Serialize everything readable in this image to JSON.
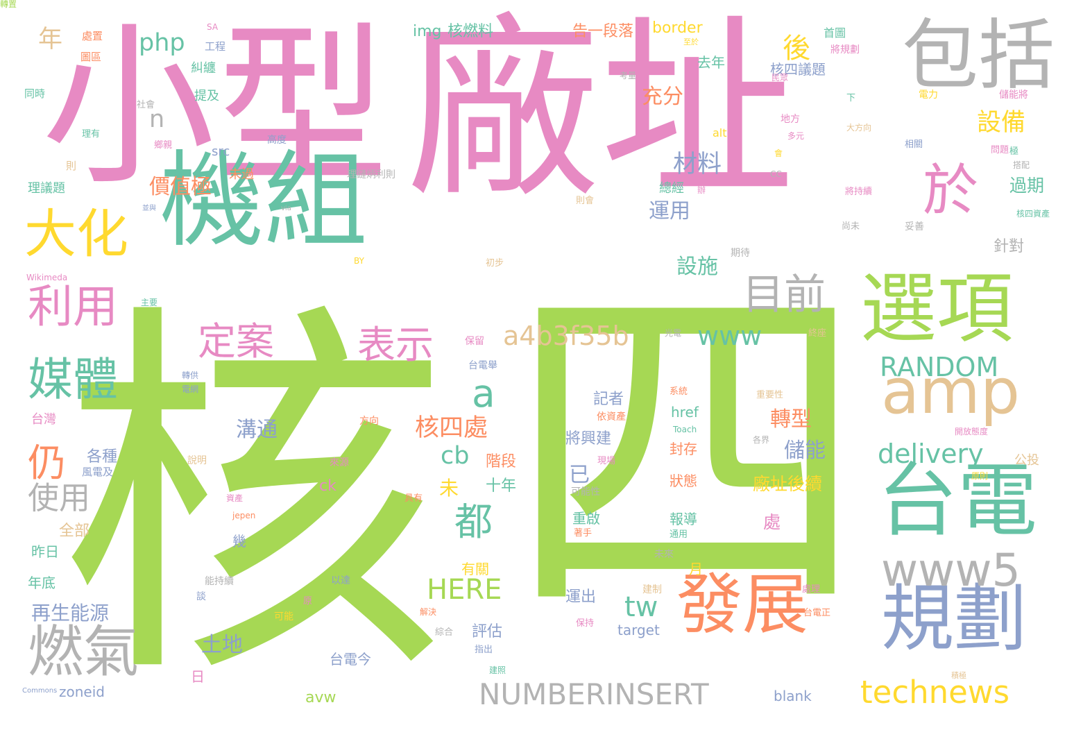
{
  "palette": {
    "pink": "#e78ac3",
    "green": "#a6d854",
    "teal": "#66c2a5",
    "orange": "#fc8d62",
    "blue": "#8da0cb",
    "yellow": "#ffd92f",
    "tan": "#e5c494",
    "gray": "#b3b3b3"
  },
  "words": [
    {
      "text": "核",
      "color": "green"
    },
    {
      "text": "四",
      "color": "green"
    },
    {
      "text": "廠址",
      "color": "pink"
    },
    {
      "text": "小型",
      "color": "pink"
    },
    {
      "text": "機組",
      "color": "teal"
    },
    {
      "text": "包括",
      "color": "gray"
    },
    {
      "text": "選項",
      "color": "green"
    },
    {
      "text": "台電",
      "color": "teal"
    },
    {
      "text": "規劃",
      "color": "blue"
    },
    {
      "text": "amp",
      "color": "tan"
    },
    {
      "text": "於",
      "color": "pink"
    },
    {
      "text": "大化",
      "color": "yellow"
    },
    {
      "text": "利用",
      "color": "pink"
    },
    {
      "text": "媒體",
      "color": "teal"
    },
    {
      "text": "燃氣",
      "color": "gray"
    },
    {
      "text": "發展",
      "color": "orange"
    },
    {
      "text": "www5",
      "color": "gray"
    },
    {
      "text": "目前",
      "color": "gray"
    },
    {
      "text": "表示",
      "color": "pink"
    },
    {
      "text": "定案",
      "color": "pink"
    },
    {
      "text": "都",
      "color": "teal"
    },
    {
      "text": "仍",
      "color": "orange"
    },
    {
      "text": "使用",
      "color": "gray"
    },
    {
      "text": "technews",
      "color": "yellow"
    },
    {
      "text": "NUMBERINSERT",
      "color": "gray"
    },
    {
      "text": "a4b3f35b",
      "color": "tan"
    },
    {
      "text": "www",
      "color": "teal"
    },
    {
      "text": "RANDOM",
      "color": "teal"
    },
    {
      "text": "delivery",
      "color": "teal"
    },
    {
      "text": "設備",
      "color": "yellow"
    },
    {
      "text": "後",
      "color": "yellow"
    },
    {
      "text": "材料",
      "color": "blue"
    },
    {
      "text": "a",
      "color": "teal"
    },
    {
      "text": "HERE",
      "color": "green"
    },
    {
      "text": "tw",
      "color": "teal"
    },
    {
      "text": "cb",
      "color": "teal"
    },
    {
      "text": "核四處",
      "color": "orange"
    },
    {
      "text": "php",
      "color": "teal"
    },
    {
      "text": "n",
      "color": "gray"
    },
    {
      "text": "年",
      "color": "tan"
    },
    {
      "text": "價值極",
      "color": "orange"
    },
    {
      "text": "充分",
      "color": "orange"
    },
    {
      "text": "運用",
      "color": "blue"
    },
    {
      "text": "設施",
      "color": "teal"
    },
    {
      "text": "過期",
      "color": "teal"
    },
    {
      "text": "針對",
      "color": "gray"
    },
    {
      "text": "轉型",
      "color": "orange"
    },
    {
      "text": "儲能",
      "color": "blue"
    },
    {
      "text": "廠址後續",
      "color": "yellow"
    },
    {
      "text": "再生能源",
      "color": "blue"
    },
    {
      "text": "土地",
      "color": "blue"
    },
    {
      "text": "溝通",
      "color": "blue"
    },
    {
      "text": "各種",
      "color": "blue"
    },
    {
      "text": "階段",
      "color": "orange"
    },
    {
      "text": "十年",
      "color": "teal"
    },
    {
      "text": "評估",
      "color": "blue"
    },
    {
      "text": "img",
      "color": "teal"
    },
    {
      "text": "核燃料",
      "color": "teal"
    },
    {
      "text": "告一段落",
      "color": "orange"
    },
    {
      "text": "border",
      "color": "yellow"
    },
    {
      "text": "去年",
      "color": "teal"
    },
    {
      "text": "核四議題",
      "color": "blue"
    },
    {
      "text": "提及",
      "color": "teal"
    },
    {
      "text": "糾纏",
      "color": "teal"
    },
    {
      "text": "src",
      "color": "blue"
    },
    {
      "text": "未過",
      "color": "orange"
    },
    {
      "text": "總經",
      "color": "teal"
    },
    {
      "text": "alt",
      "color": "yellow"
    },
    {
      "text": "台灣",
      "color": "pink"
    },
    {
      "text": "全部",
      "color": "tan"
    },
    {
      "text": "昨日",
      "color": "teal"
    },
    {
      "text": "年底",
      "color": "teal"
    },
    {
      "text": "zoneid",
      "color": "blue"
    },
    {
      "text": "avw",
      "color": "green"
    },
    {
      "text": "台電今",
      "color": "blue"
    },
    {
      "text": "blank",
      "color": "blue"
    },
    {
      "text": "target",
      "color": "blue"
    },
    {
      "text": "運出",
      "color": "blue"
    },
    {
      "text": "將興建",
      "color": "blue"
    },
    {
      "text": "記者",
      "color": "blue"
    },
    {
      "text": "重啟",
      "color": "teal"
    },
    {
      "text": "報導",
      "color": "teal"
    },
    {
      "text": "狀態",
      "color": "orange"
    },
    {
      "text": "封存",
      "color": "orange"
    },
    {
      "text": "href",
      "color": "teal"
    },
    {
      "text": "已",
      "color": "blue"
    },
    {
      "text": "未",
      "color": "yellow"
    },
    {
      "text": "有關",
      "color": "yellow"
    },
    {
      "text": "ck",
      "color": "pink"
    },
    {
      "text": "月",
      "color": "yellow"
    },
    {
      "text": "處",
      "color": "pink"
    },
    {
      "text": "幾",
      "color": "blue"
    },
    {
      "text": "日",
      "color": "pink"
    },
    {
      "text": "理議題",
      "color": "teal"
    },
    {
      "text": "同時",
      "color": "teal"
    },
    {
      "text": "則",
      "color": "tan"
    },
    {
      "text": "公投",
      "color": "tan"
    },
    {
      "text": "風電及",
      "color": "blue"
    },
    {
      "text": "處置",
      "color": "orange"
    },
    {
      "text": "圖區",
      "color": "orange"
    },
    {
      "text": "SA",
      "color": "pink"
    },
    {
      "text": "工程",
      "color": "blue"
    },
    {
      "text": "社會",
      "color": "gray"
    },
    {
      "text": "理有",
      "color": "teal"
    },
    {
      "text": "鄉親",
      "color": "pink"
    },
    {
      "text": "高度",
      "color": "blue"
    },
    {
      "text": "理鏈炳利則",
      "color": "gray"
    },
    {
      "text": "並與",
      "color": "blue"
    },
    {
      "text": "via",
      "color": "gray"
    },
    {
      "text": "Wikimeda",
      "color": "pink"
    },
    {
      "text": "主要",
      "color": "teal"
    },
    {
      "text": "BY",
      "color": "yellow"
    },
    {
      "text": "初步",
      "color": "tan"
    },
    {
      "text": "期待",
      "color": "gray"
    },
    {
      "text": "保留",
      "color": "pink"
    },
    {
      "text": "光電",
      "color": "gray"
    },
    {
      "text": "終座",
      "color": "tan"
    },
    {
      "text": "台電舉",
      "color": "blue"
    },
    {
      "text": "轉供",
      "color": "blue"
    },
    {
      "text": "電網",
      "color": "blue"
    },
    {
      "text": "系統",
      "color": "orange"
    },
    {
      "text": "重要性",
      "color": "tan"
    },
    {
      "text": "依資產",
      "color": "orange"
    },
    {
      "text": "Toach",
      "color": "teal"
    },
    {
      "text": "各界",
      "color": "gray"
    },
    {
      "text": "開放態度",
      "color": "pink"
    },
    {
      "text": "方向",
      "color": "orange"
    },
    {
      "text": "說明",
      "color": "tan"
    },
    {
      "text": "來源",
      "color": "pink"
    },
    {
      "text": "現場",
      "color": "pink"
    },
    {
      "text": "可能性",
      "color": "gray"
    },
    {
      "text": "具有",
      "color": "orange"
    },
    {
      "text": "資產",
      "color": "pink"
    },
    {
      "text": "jepen",
      "color": "orange"
    },
    {
      "text": "著手",
      "color": "orange"
    },
    {
      "text": "通用",
      "color": "teal"
    },
    {
      "text": "未來",
      "color": "gray"
    },
    {
      "text": "原則",
      "color": "yellow"
    },
    {
      "text": "能持續",
      "color": "gray"
    },
    {
      "text": "談",
      "color": "blue"
    },
    {
      "text": "以達",
      "color": "blue"
    },
    {
      "text": "原",
      "color": "pink"
    },
    {
      "text": "建制",
      "color": "tan"
    },
    {
      "text": "處理",
      "color": "pink"
    },
    {
      "text": "可能",
      "color": "yellow"
    },
    {
      "text": "解決",
      "color": "orange"
    },
    {
      "text": "台電正",
      "color": "orange"
    },
    {
      "text": "綜合",
      "color": "gray"
    },
    {
      "text": "保持",
      "color": "pink"
    },
    {
      "text": "指出",
      "color": "blue"
    },
    {
      "text": "建照",
      "color": "teal"
    },
    {
      "text": "積極",
      "color": "tan"
    },
    {
      "text": "Commons",
      "color": "blue"
    },
    {
      "text": "首圖",
      "color": "teal"
    },
    {
      "text": "將規劃",
      "color": "pink"
    },
    {
      "text": "至於",
      "color": "yellow"
    },
    {
      "text": "考量",
      "color": "gray"
    },
    {
      "text": "民眾",
      "color": "pink"
    },
    {
      "text": "下",
      "color": "teal"
    },
    {
      "text": "電力",
      "color": "yellow"
    },
    {
      "text": "儲能將",
      "color": "pink"
    },
    {
      "text": "大方向",
      "color": "tan"
    },
    {
      "text": "地方",
      "color": "pink"
    },
    {
      "text": "多元",
      "color": "pink"
    },
    {
      "text": "會",
      "color": "yellow"
    },
    {
      "text": "相關",
      "color": "blue"
    },
    {
      "text": "問題",
      "color": "pink"
    },
    {
      "text": "極",
      "color": "teal"
    },
    {
      "text": "搭配",
      "color": "gray"
    },
    {
      "text": "CC",
      "color": "gray"
    },
    {
      "text": "則會",
      "color": "tan"
    },
    {
      "text": "辦",
      "color": "pink"
    },
    {
      "text": "將持續",
      "color": "pink"
    },
    {
      "text": "尚未",
      "color": "gray"
    },
    {
      "text": "妥善",
      "color": "gray"
    },
    {
      "text": "核四資產",
      "color": "teal"
    },
    {
      "text": "轉置",
      "color": "green"
    }
  ]
}
